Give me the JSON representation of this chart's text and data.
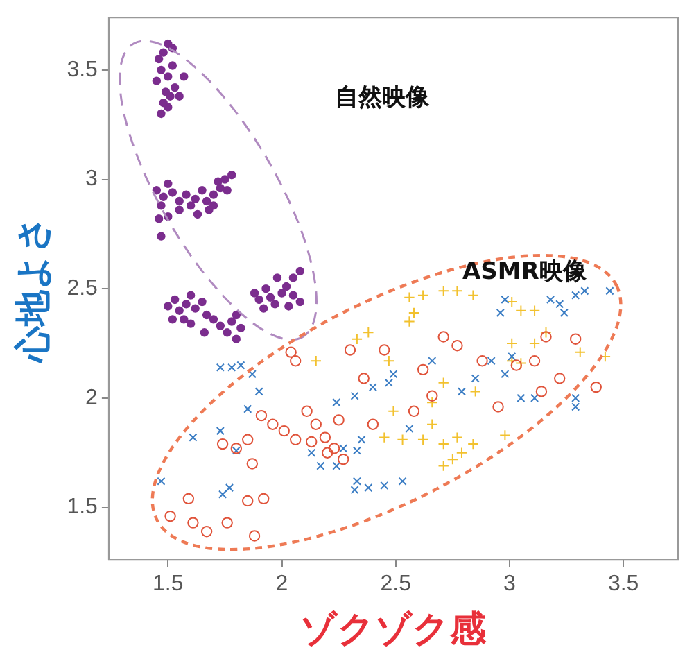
{
  "chart_data": {
    "type": "scatter",
    "xlabel": "ゾクゾク感",
    "ylabel": "心地よさ",
    "xlim": [
      1.24,
      3.74
    ],
    "ylim": [
      1.26,
      3.74
    ],
    "xticks": [
      1.5,
      2,
      2.5,
      3,
      3.5
    ],
    "yticks": [
      1.5,
      2,
      2.5,
      3,
      3.5
    ],
    "grid": false,
    "legend": false,
    "annotations": [
      "自然映像",
      "ASMR映像"
    ],
    "series": [
      {
        "color": "#7b2d8e",
        "x": [
          1.46,
          1.48,
          1.5,
          1.52,
          1.47,
          1.5,
          1.52,
          1.45,
          1.49,
          1.51,
          1.48,
          1.53,
          1.57,
          1.55,
          1.47,
          1.5,
          1.45,
          1.48,
          1.5,
          1.52,
          1.47,
          1.55,
          1.58,
          1.6,
          1.62,
          1.65,
          1.67,
          1.7,
          1.72,
          1.75,
          1.78,
          1.73,
          1.68,
          1.63,
          1.55,
          1.5,
          1.46,
          1.47,
          1.7,
          1.76,
          1.5,
          1.53,
          1.55,
          1.58,
          1.6,
          1.62,
          1.65,
          1.57,
          1.52,
          1.6,
          1.67,
          1.7,
          1.73,
          1.76,
          1.78,
          1.8,
          1.82,
          1.8,
          1.66,
          1.88,
          1.9,
          1.93,
          1.95,
          1.97,
          2.0,
          2.02,
          2.05,
          2.08,
          2.05,
          1.98,
          2.08,
          1.92,
          2.03
        ],
        "values": [
          3.55,
          3.58,
          3.62,
          3.6,
          3.5,
          3.47,
          3.52,
          3.45,
          3.4,
          3.38,
          3.35,
          3.42,
          3.47,
          3.38,
          3.3,
          3.33,
          2.95,
          2.92,
          2.98,
          2.94,
          2.88,
          2.9,
          2.93,
          2.88,
          2.91,
          2.95,
          2.9,
          2.93,
          2.99,
          3.0,
          3.02,
          2.96,
          2.86,
          2.84,
          2.86,
          2.83,
          2.82,
          2.74,
          2.88,
          2.95,
          2.42,
          2.45,
          2.4,
          2.43,
          2.47,
          2.41,
          2.44,
          2.36,
          2.36,
          2.34,
          2.38,
          2.36,
          2.33,
          2.3,
          2.35,
          2.38,
          2.32,
          2.27,
          2.3,
          2.48,
          2.45,
          2.5,
          2.46,
          2.43,
          2.48,
          2.51,
          2.47,
          2.44,
          2.55,
          2.55,
          2.58,
          2.41,
          2.42
        ]
      },
      {
        "color": "#e0533a",
        "marker": "circle",
        "x": [
          1.51,
          1.61,
          1.67,
          1.76,
          1.88,
          1.92,
          1.85,
          1.59,
          1.91,
          1.96,
          2.01,
          2.06,
          2.11,
          2.15,
          2.19,
          2.23,
          2.27,
          2.13,
          2.2,
          2.25,
          2.06,
          2.04,
          2.3,
          2.36,
          2.45,
          2.62,
          2.71,
          2.77,
          2.66,
          2.58,
          2.4,
          2.95,
          3.11,
          3.16,
          3.29,
          3.22,
          3.38,
          3.14,
          3.03,
          2.88,
          1.85,
          1.87,
          1.8,
          1.74
        ],
        "values": [
          1.46,
          1.43,
          1.39,
          1.43,
          1.37,
          1.54,
          1.53,
          1.54,
          1.92,
          1.88,
          1.85,
          1.81,
          1.94,
          1.88,
          1.82,
          1.77,
          1.72,
          1.8,
          1.75,
          1.9,
          2.17,
          2.21,
          2.22,
          2.09,
          2.22,
          2.13,
          2.28,
          2.24,
          2.01,
          1.94,
          1.88,
          1.96,
          2.17,
          2.28,
          2.27,
          2.09,
          2.05,
          2.03,
          2.15,
          2.17,
          1.81,
          1.7,
          1.77,
          1.79
        ]
      },
      {
        "color": "#3b7dc4",
        "marker": "x",
        "x": [
          1.47,
          1.61,
          1.73,
          1.74,
          1.77,
          1.73,
          1.78,
          1.82,
          1.87,
          1.9,
          1.85,
          1.8,
          2.13,
          2.17,
          2.24,
          2.27,
          2.33,
          2.35,
          2.33,
          2.32,
          2.38,
          2.45,
          2.53,
          2.4,
          2.47,
          2.49,
          2.32,
          2.24,
          2.56,
          2.79,
          2.85,
          2.92,
          2.98,
          3.05,
          3.11,
          3.01,
          2.96,
          2.98,
          3.18,
          3.22,
          3.29,
          3.33,
          3.44,
          3.24,
          3.29,
          3.29,
          2.66
        ],
        "values": [
          1.62,
          1.82,
          1.85,
          1.56,
          1.59,
          2.14,
          2.14,
          2.15,
          2.11,
          2.03,
          1.95,
          1.76,
          1.75,
          1.69,
          1.69,
          1.77,
          1.76,
          1.81,
          1.62,
          1.58,
          1.59,
          1.6,
          1.62,
          2.05,
          2.07,
          2.11,
          2.01,
          1.98,
          1.86,
          2.03,
          2.09,
          2.17,
          2.11,
          2.0,
          2.0,
          2.19,
          2.39,
          2.45,
          2.45,
          2.43,
          2.47,
          2.49,
          2.49,
          2.39,
          2.0,
          1.96,
          2.17
        ]
      },
      {
        "color": "#f2c12e",
        "marker": "cross",
        "x": [
          2.56,
          2.62,
          2.71,
          2.77,
          2.84,
          2.58,
          2.56,
          2.38,
          2.33,
          2.15,
          2.47,
          3.01,
          3.05,
          3.11,
          3.01,
          3.11,
          3.16,
          3.31,
          3.42,
          3.01,
          3.05,
          2.71,
          2.66,
          2.49,
          2.45,
          2.53,
          2.62,
          2.71,
          2.77,
          2.84,
          2.98,
          2.75,
          2.71,
          2.79,
          2.66,
          2.85
        ],
        "values": [
          2.46,
          2.47,
          2.49,
          2.49,
          2.47,
          2.39,
          2.35,
          2.3,
          2.27,
          2.17,
          2.17,
          2.44,
          2.4,
          2.4,
          2.25,
          2.25,
          2.3,
          2.21,
          2.19,
          2.17,
          2.16,
          2.07,
          1.98,
          1.94,
          1.82,
          1.81,
          1.81,
          1.79,
          1.82,
          1.79,
          1.83,
          1.72,
          1.69,
          1.75,
          1.88,
          2.03
        ]
      }
    ]
  }
}
